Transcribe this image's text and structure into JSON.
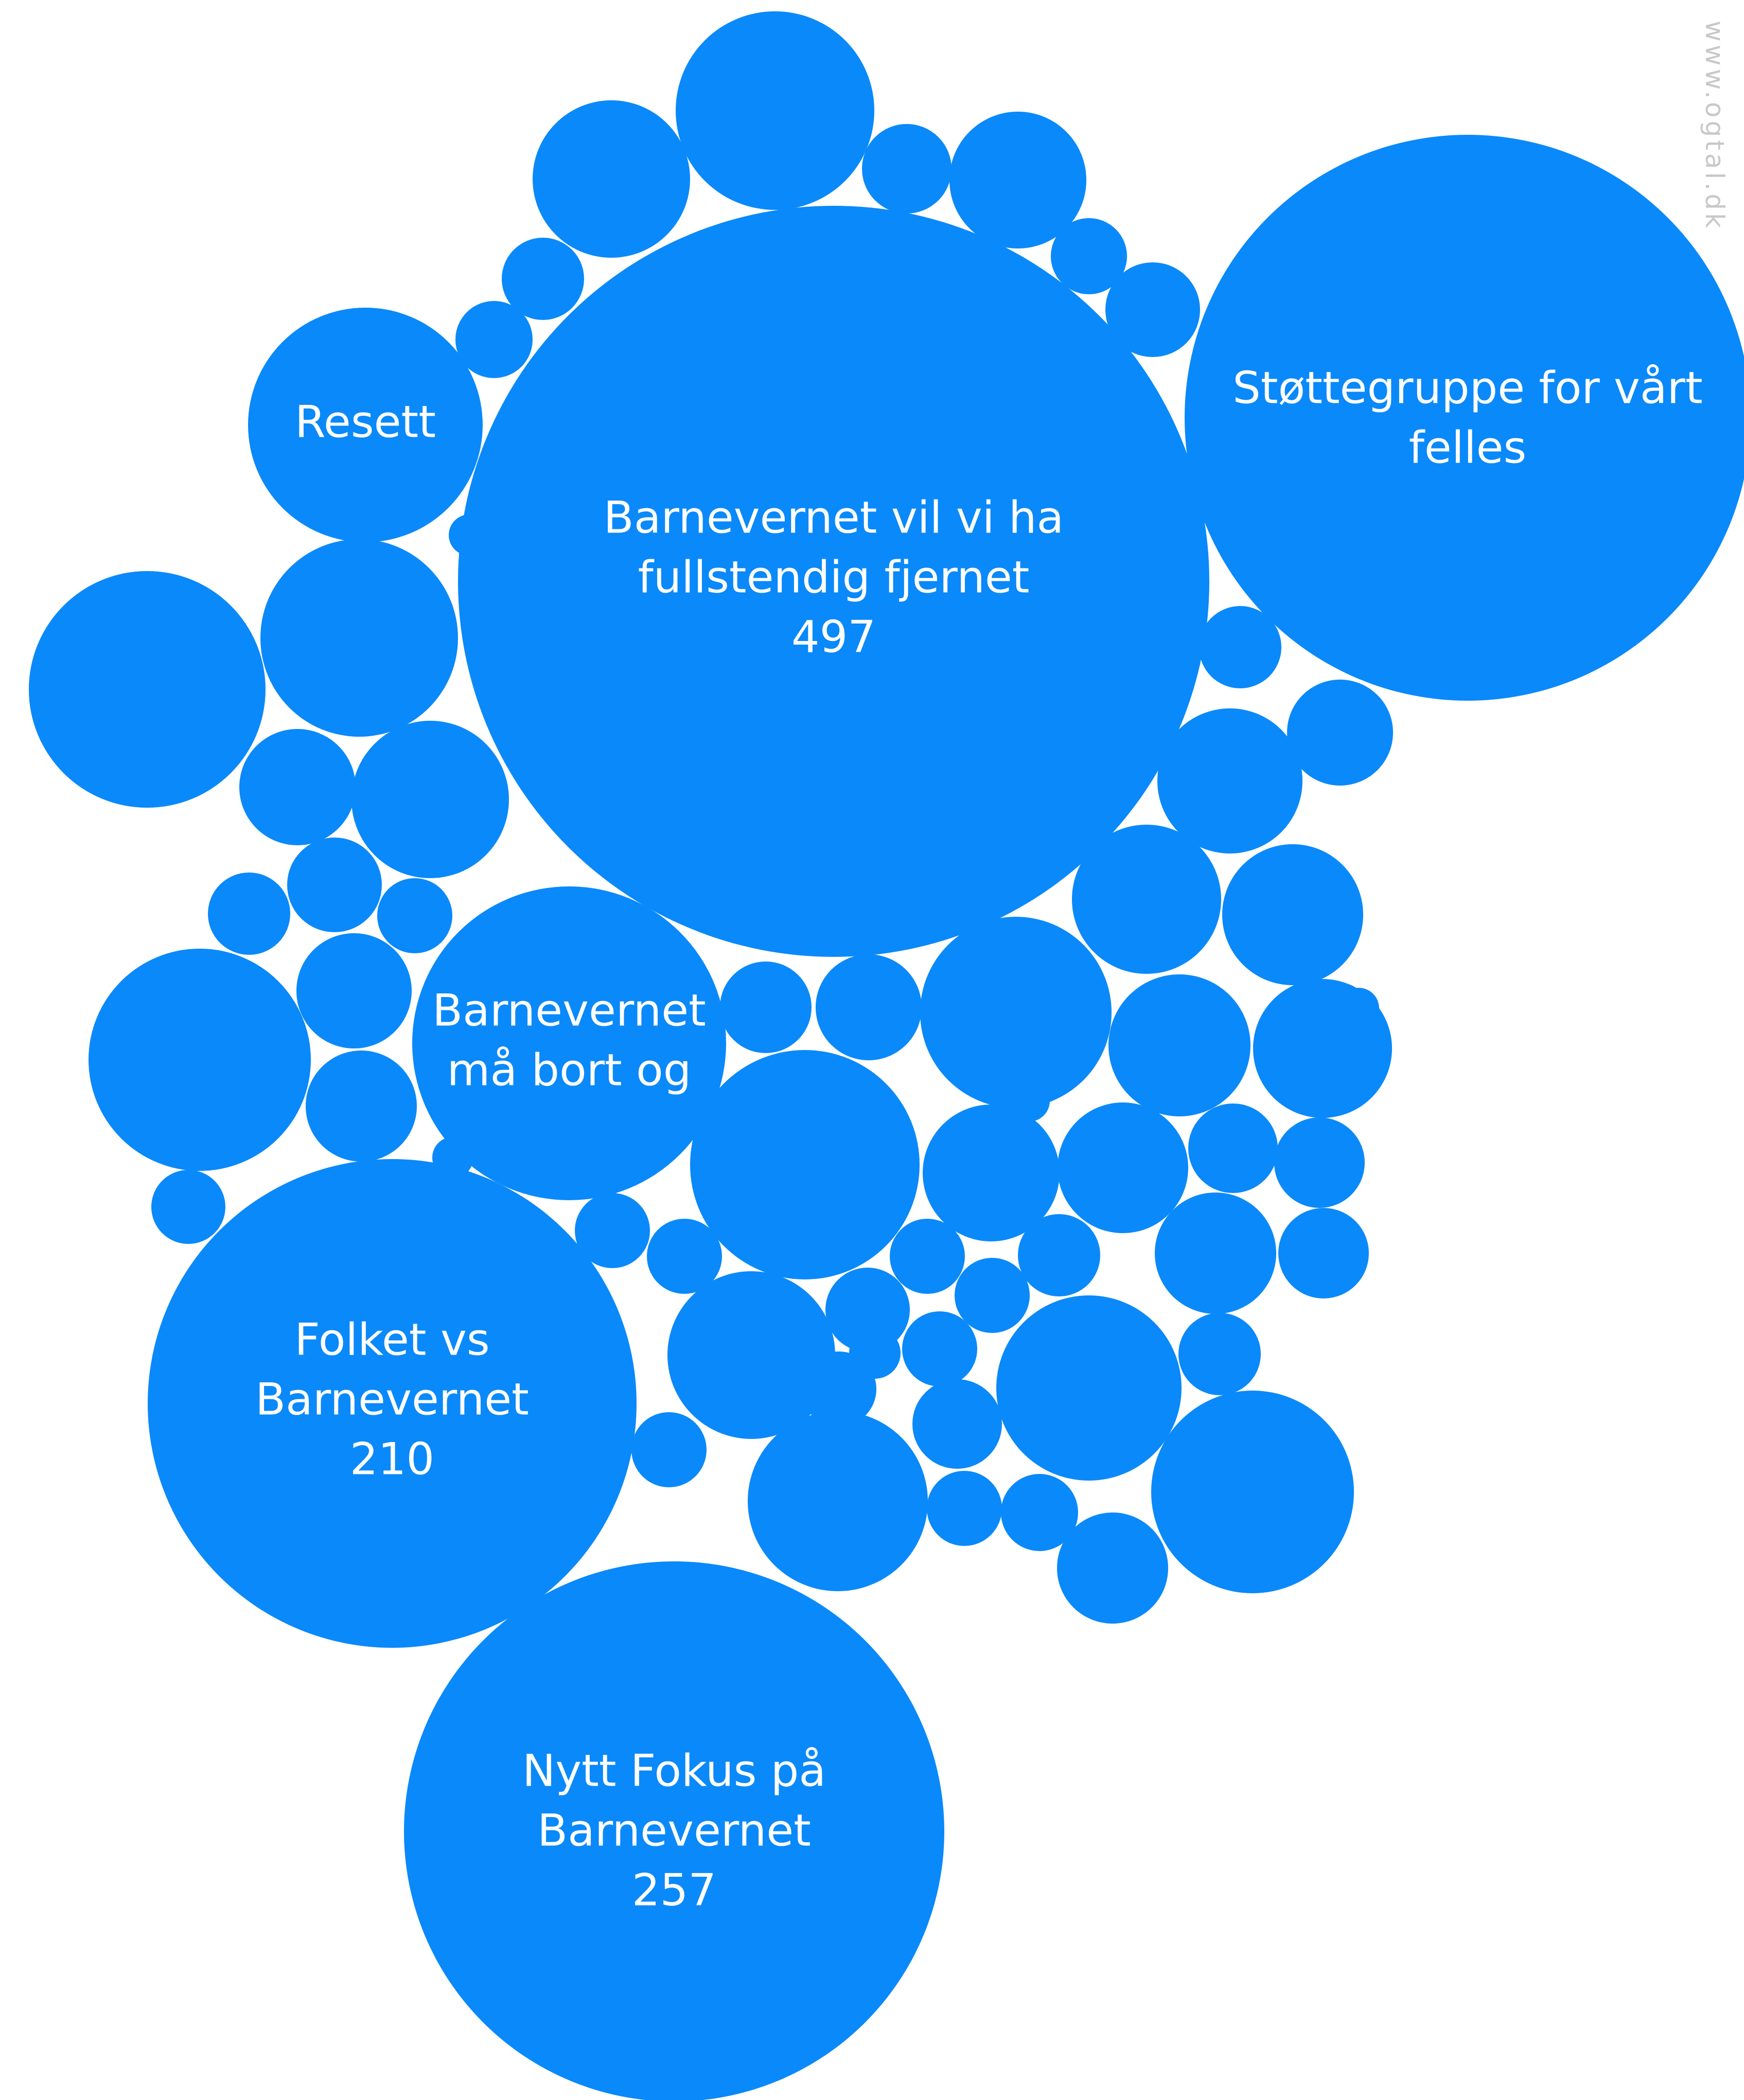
{
  "watermark": "www.ogtal.dk",
  "colors": {
    "bubble": "#0a89fa",
    "label": "#ffffff",
    "background": "#ffffff",
    "watermark": "#c8c8c8"
  },
  "chart_data": {
    "type": "bubble",
    "title": "",
    "labeled_bubbles": [
      {
        "name": "Barnevernet vil vi ha fullstendig fjernet",
        "value": 497,
        "value_shown": true
      },
      {
        "name": "Nytt Fokus på Barnevernet",
        "value": 257,
        "value_shown": true
      },
      {
        "name": "Folket vs Barnevernet",
        "value": 210,
        "value_shown": true
      },
      {
        "name": "Støttegruppe for vårt felles",
        "value": null,
        "value_shown": false
      },
      {
        "name": "Barnevernet må bort og",
        "value": null,
        "value_shown": false
      },
      {
        "name": "Resett",
        "value": null,
        "value_shown": false
      }
    ],
    "unlabeled_bubble_count": 63
  }
}
